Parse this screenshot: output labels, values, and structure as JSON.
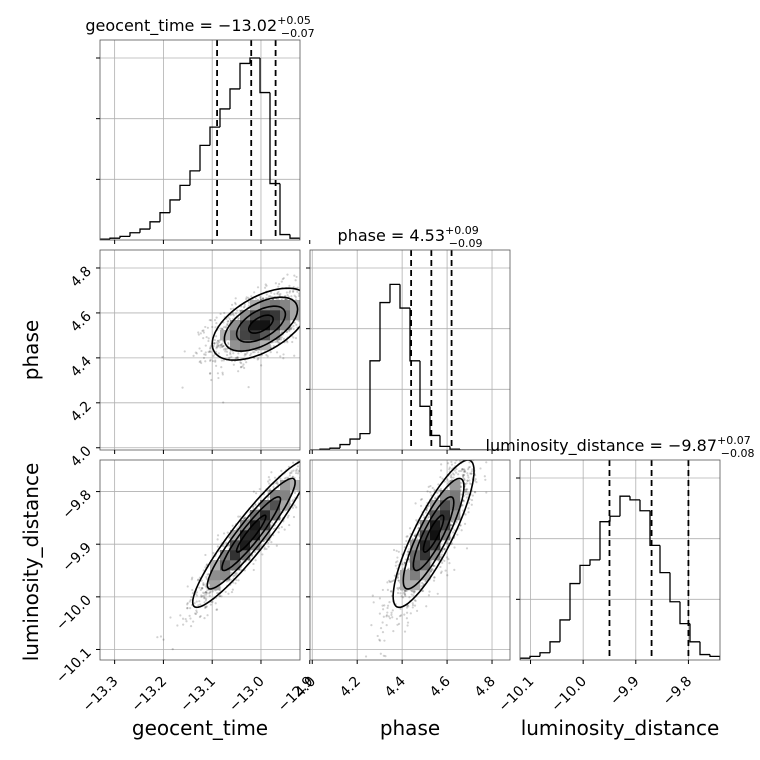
{
  "chart_data": {
    "type": "corner",
    "parameters": [
      {
        "name": "geocent_time",
        "title": {
          "prefix": "geocent_time = ",
          "value": "−13.02",
          "upper": "+0.05",
          "lower": "−0.07"
        },
        "range": [
          -13.33,
          -12.92
        ],
        "ticks": [
          -13.3,
          -13.2,
          -13.1,
          -13.0,
          -12.9
        ],
        "tick_labels": [
          "−13.3",
          "−13.2",
          "−13.1",
          "−13.0",
          "−12.9"
        ],
        "quantiles": [
          -13.09,
          -13.02,
          -12.97
        ],
        "histogram": [
          0.005,
          0.01,
          0.02,
          0.04,
          0.06,
          0.1,
          0.15,
          0.22,
          0.3,
          0.38,
          0.52,
          0.62,
          0.72,
          0.83,
          0.97,
          1.0,
          0.81,
          0.31,
          0.03,
          0.01
        ]
      },
      {
        "name": "phase",
        "title": {
          "prefix": "phase = ",
          "value": "4.53",
          "upper": "+0.09",
          "lower": "−0.09"
        },
        "range": [
          3.99,
          4.88
        ],
        "ticks": [
          4.0,
          4.2,
          4.4,
          4.6,
          4.8
        ],
        "tick_labels": [
          "4.0",
          "4.2",
          "4.4",
          "4.6",
          "4.8"
        ],
        "quantiles": [
          4.44,
          4.53,
          4.62
        ],
        "histogram": [
          0.0,
          0.005,
          0.01,
          0.03,
          0.06,
          0.09,
          0.49,
          0.81,
          0.91,
          0.78,
          0.49,
          0.24,
          0.08,
          0.02,
          0.005,
          0.0,
          0.0,
          0.0,
          0.0,
          0.0
        ]
      },
      {
        "name": "luminosity_distance",
        "title": {
          "prefix": "luminosity_distance = ",
          "value": "−9.87",
          "upper": "+0.07",
          "lower": "−0.08"
        },
        "range": [
          -10.12,
          -9.74
        ],
        "ticks": [
          -10.1,
          -10.0,
          -9.9,
          -9.8
        ],
        "tick_labels": [
          "−10.1",
          "−10.0",
          "−9.9",
          "−9.8"
        ],
        "quantiles": [
          -9.95,
          -9.87,
          -9.8
        ],
        "histogram": [
          0.01,
          0.02,
          0.04,
          0.1,
          0.22,
          0.42,
          0.52,
          0.55,
          0.76,
          0.79,
          0.9,
          0.88,
          0.82,
          0.63,
          0.48,
          0.32,
          0.2,
          0.1,
          0.03,
          0.02
        ]
      }
    ],
    "axis_labels": [
      "geocent_time",
      "phase",
      "luminosity_distance"
    ],
    "grid": true,
    "pairs": [
      {
        "x": "geocent_time",
        "y": "phase",
        "mean": [
          -13.0,
          4.55
        ],
        "sd": [
          0.05,
          0.08
        ],
        "corr": 0.55,
        "contour_levels_sigma": [
          0.5,
          1.0,
          1.5,
          2.0
        ]
      },
      {
        "x": "geocent_time",
        "y": "luminosity_distance",
        "mean": [
          -13.02,
          -9.88
        ],
        "sd": [
          0.06,
          0.07
        ],
        "corr": 0.93,
        "contour_levels_sigma": [
          0.5,
          1.0,
          1.5,
          2.0
        ]
      },
      {
        "x": "phase",
        "y": "luminosity_distance",
        "mean": [
          4.54,
          -9.88
        ],
        "sd": [
          0.09,
          0.07
        ],
        "corr": 0.85,
        "contour_levels_sigma": [
          0.5,
          1.0,
          1.5,
          2.0
        ]
      }
    ]
  }
}
